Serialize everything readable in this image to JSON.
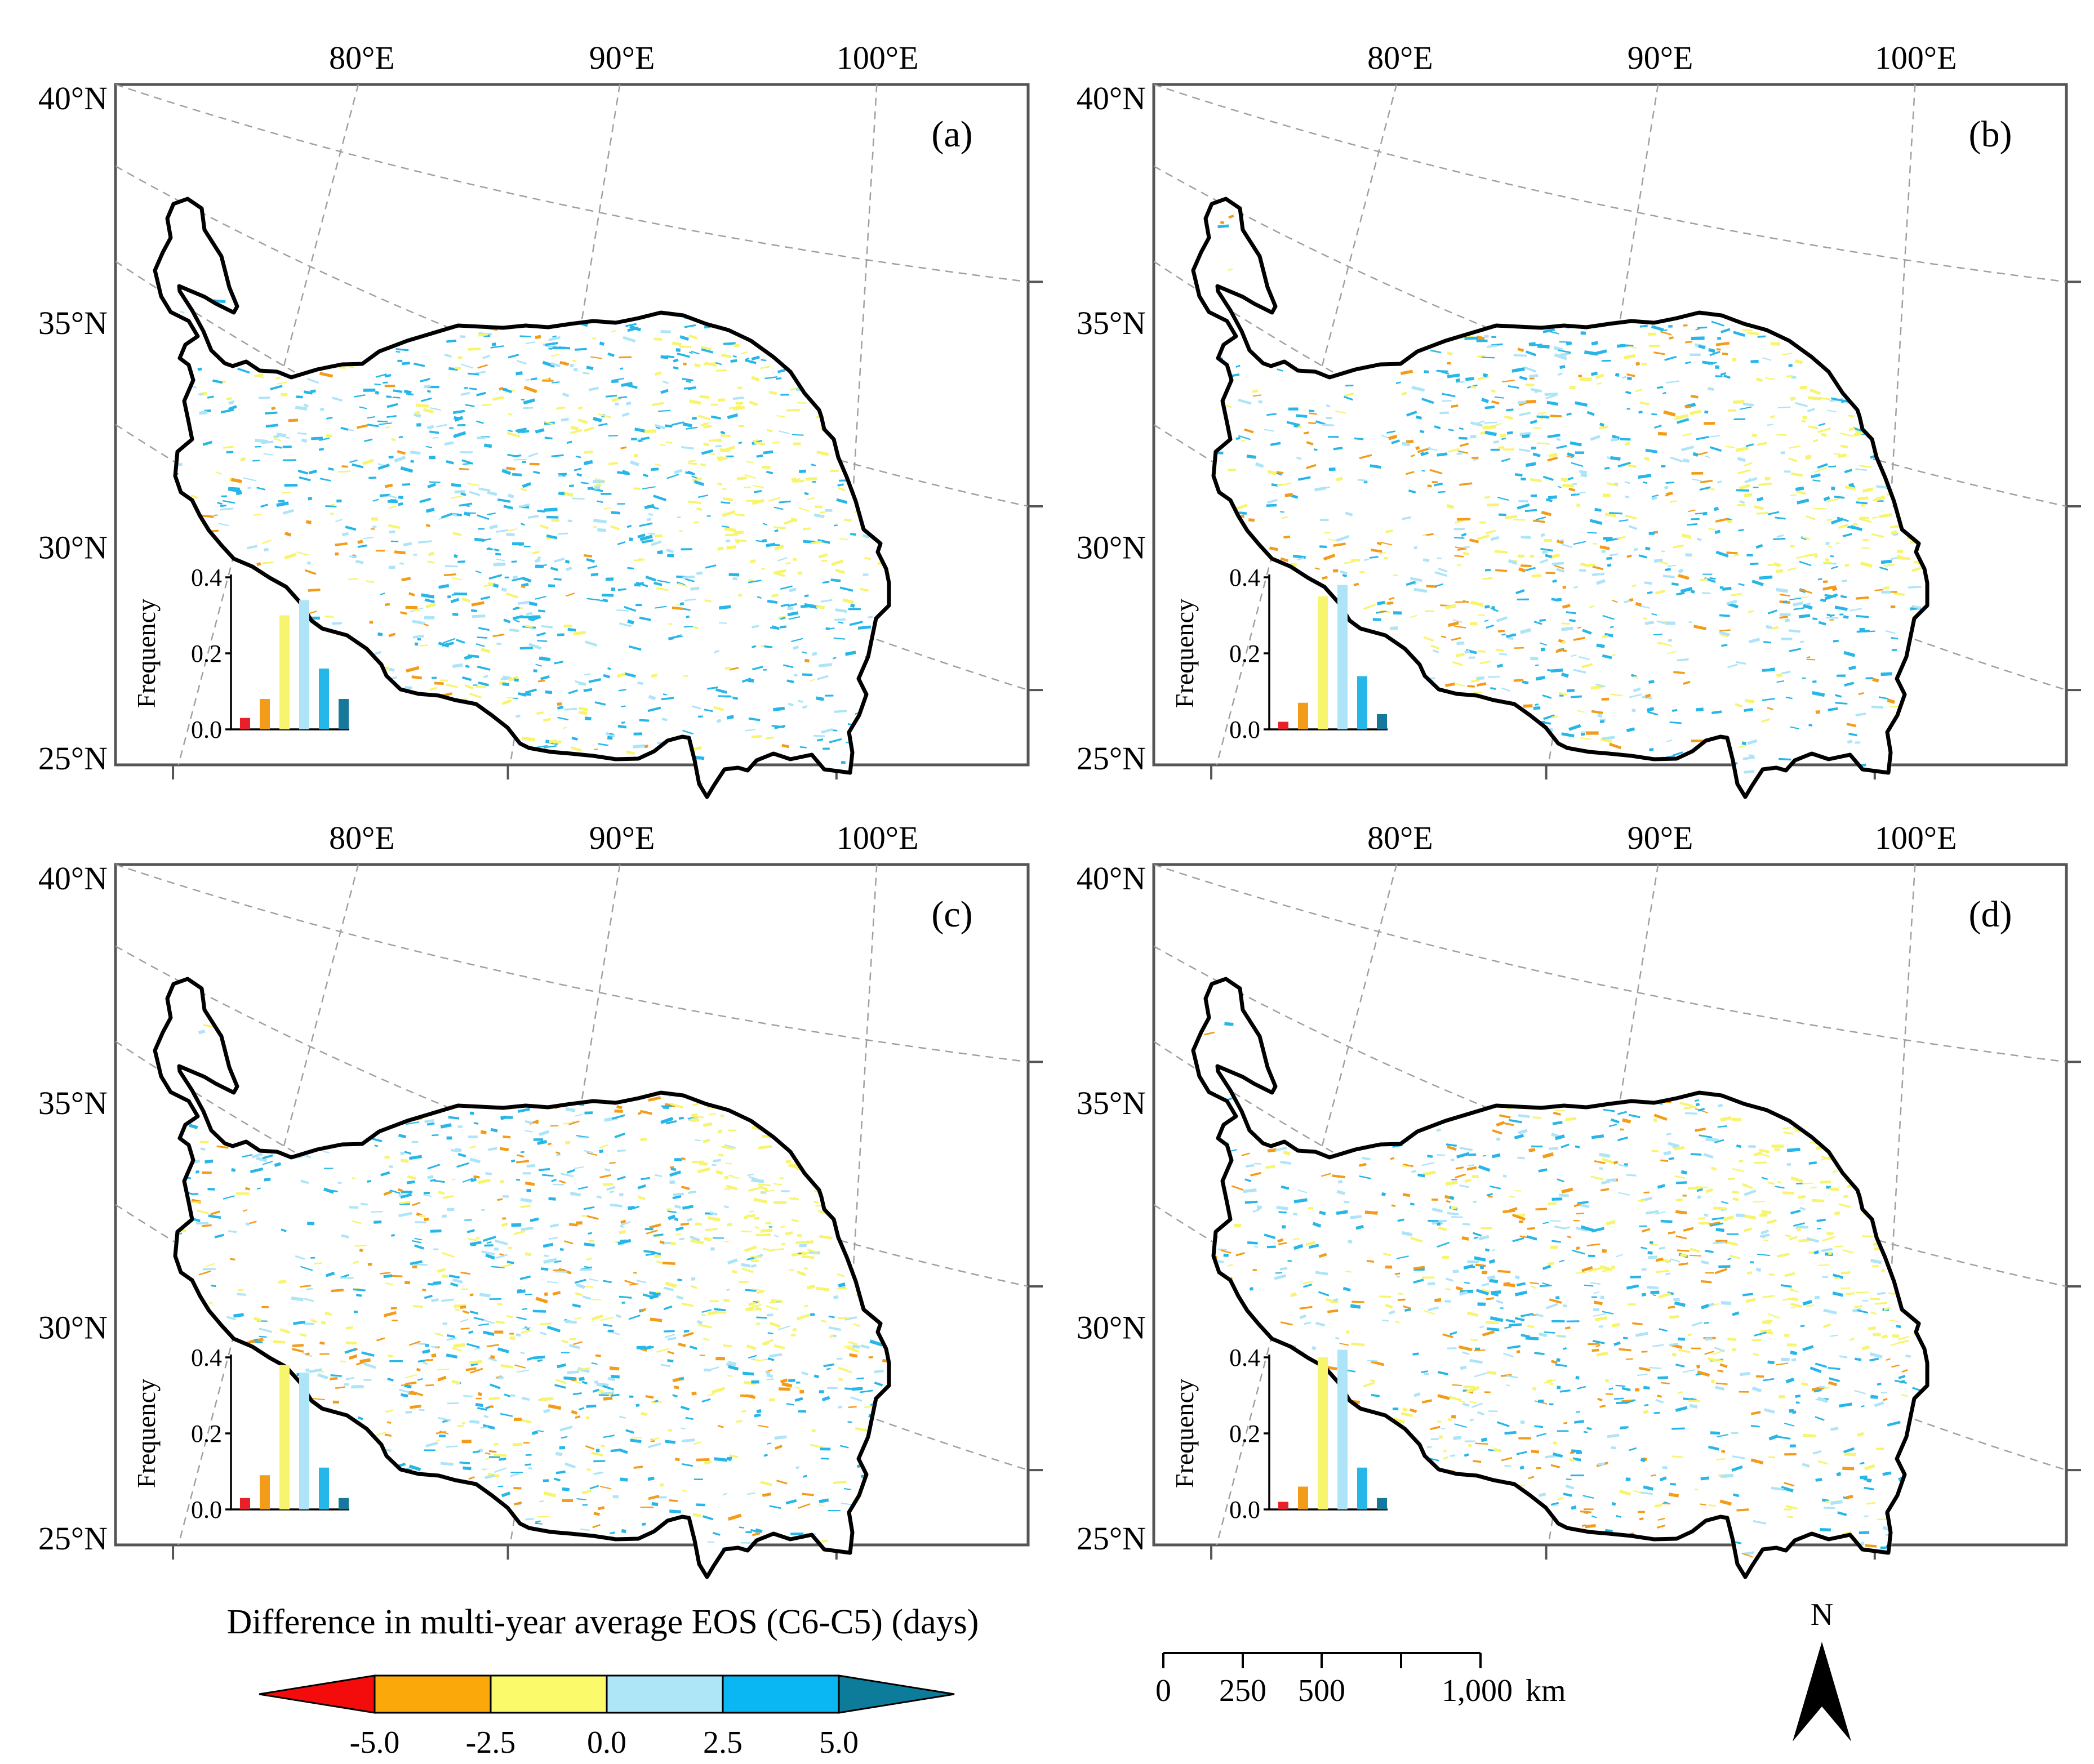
{
  "panels": [
    {
      "label": "(a)",
      "frequency": [
        0.03,
        0.08,
        0.3,
        0.34,
        0.16,
        0.08
      ]
    },
    {
      "label": "(b)",
      "frequency": [
        0.02,
        0.07,
        0.35,
        0.38,
        0.14,
        0.04
      ]
    },
    {
      "label": "(c)",
      "frequency": [
        0.03,
        0.09,
        0.38,
        0.36,
        0.11,
        0.03
      ]
    },
    {
      "label": "(d)",
      "frequency": [
        0.02,
        0.06,
        0.4,
        0.42,
        0.11,
        0.03
      ]
    }
  ],
  "histogram": {
    "ylabel": "Frequency",
    "ymax": 0.4,
    "yticks": [
      "0.0",
      "0.2",
      "0.4"
    ],
    "bar_colors": [
      "#e8202a",
      "#f39c1a",
      "#f7f46e",
      "#aee4f7",
      "#27b6e8",
      "#16789a"
    ]
  },
  "map": {
    "lon_labels": [
      "80°E",
      "90°E",
      "100°E"
    ],
    "lat_labels": [
      "40°N",
      "35°N",
      "30°N",
      "25°N"
    ],
    "colors": {
      "yellow": "#f7f46e",
      "light_blue": "#aee4f7",
      "blue": "#27b6e8",
      "orange": "#f39c1a",
      "red": "#e8202a"
    }
  },
  "legend": {
    "title": "Difference in multi-year average EOS (C6-C5) (days)",
    "ticks": [
      "-5.0",
      "-2.5",
      "0.0",
      "2.5",
      "5.0"
    ],
    "colors": [
      "#f40b0b",
      "#faa80a",
      "#fbfa6b",
      "#aee6f7",
      "#0ab7f2",
      "#0d7c9a"
    ]
  },
  "scale_bar": {
    "labels": [
      "0",
      "250",
      "500",
      "1,000"
    ],
    "unit": "km"
  },
  "north_arrow": {
    "label": "N"
  },
  "chart_data": [
    {
      "type": "bar",
      "title": "(a)",
      "categories": [
        "< -5.0",
        "-5.0 to -2.5",
        "-2.5 to 0.0",
        "0.0 to 2.5",
        "2.5 to 5.0",
        "> 5.0"
      ],
      "values": [
        0.03,
        0.08,
        0.3,
        0.34,
        0.16,
        0.08
      ],
      "ylabel": "Frequency",
      "ylim": [
        0,
        0.4
      ]
    },
    {
      "type": "bar",
      "title": "(b)",
      "categories": [
        "< -5.0",
        "-5.0 to -2.5",
        "-2.5 to 0.0",
        "0.0 to 2.5",
        "2.5 to 5.0",
        "> 5.0"
      ],
      "values": [
        0.02,
        0.07,
        0.35,
        0.38,
        0.14,
        0.04
      ],
      "ylabel": "Frequency",
      "ylim": [
        0,
        0.4
      ]
    },
    {
      "type": "bar",
      "title": "(c)",
      "categories": [
        "< -5.0",
        "-5.0 to -2.5",
        "-2.5 to 0.0",
        "0.0 to 2.5",
        "2.5 to 5.0",
        "> 5.0"
      ],
      "values": [
        0.03,
        0.09,
        0.38,
        0.36,
        0.11,
        0.03
      ],
      "ylabel": "Frequency",
      "ylim": [
        0,
        0.4
      ]
    },
    {
      "type": "bar",
      "title": "(d)",
      "categories": [
        "< -5.0",
        "-5.0 to -2.5",
        "-2.5 to 0.0",
        "0.0 to 2.5",
        "2.5 to 5.0",
        "> 5.0"
      ],
      "values": [
        0.02,
        0.06,
        0.4,
        0.42,
        0.11,
        0.03
      ],
      "ylabel": "Frequency",
      "ylim": [
        0,
        0.4
      ]
    }
  ]
}
